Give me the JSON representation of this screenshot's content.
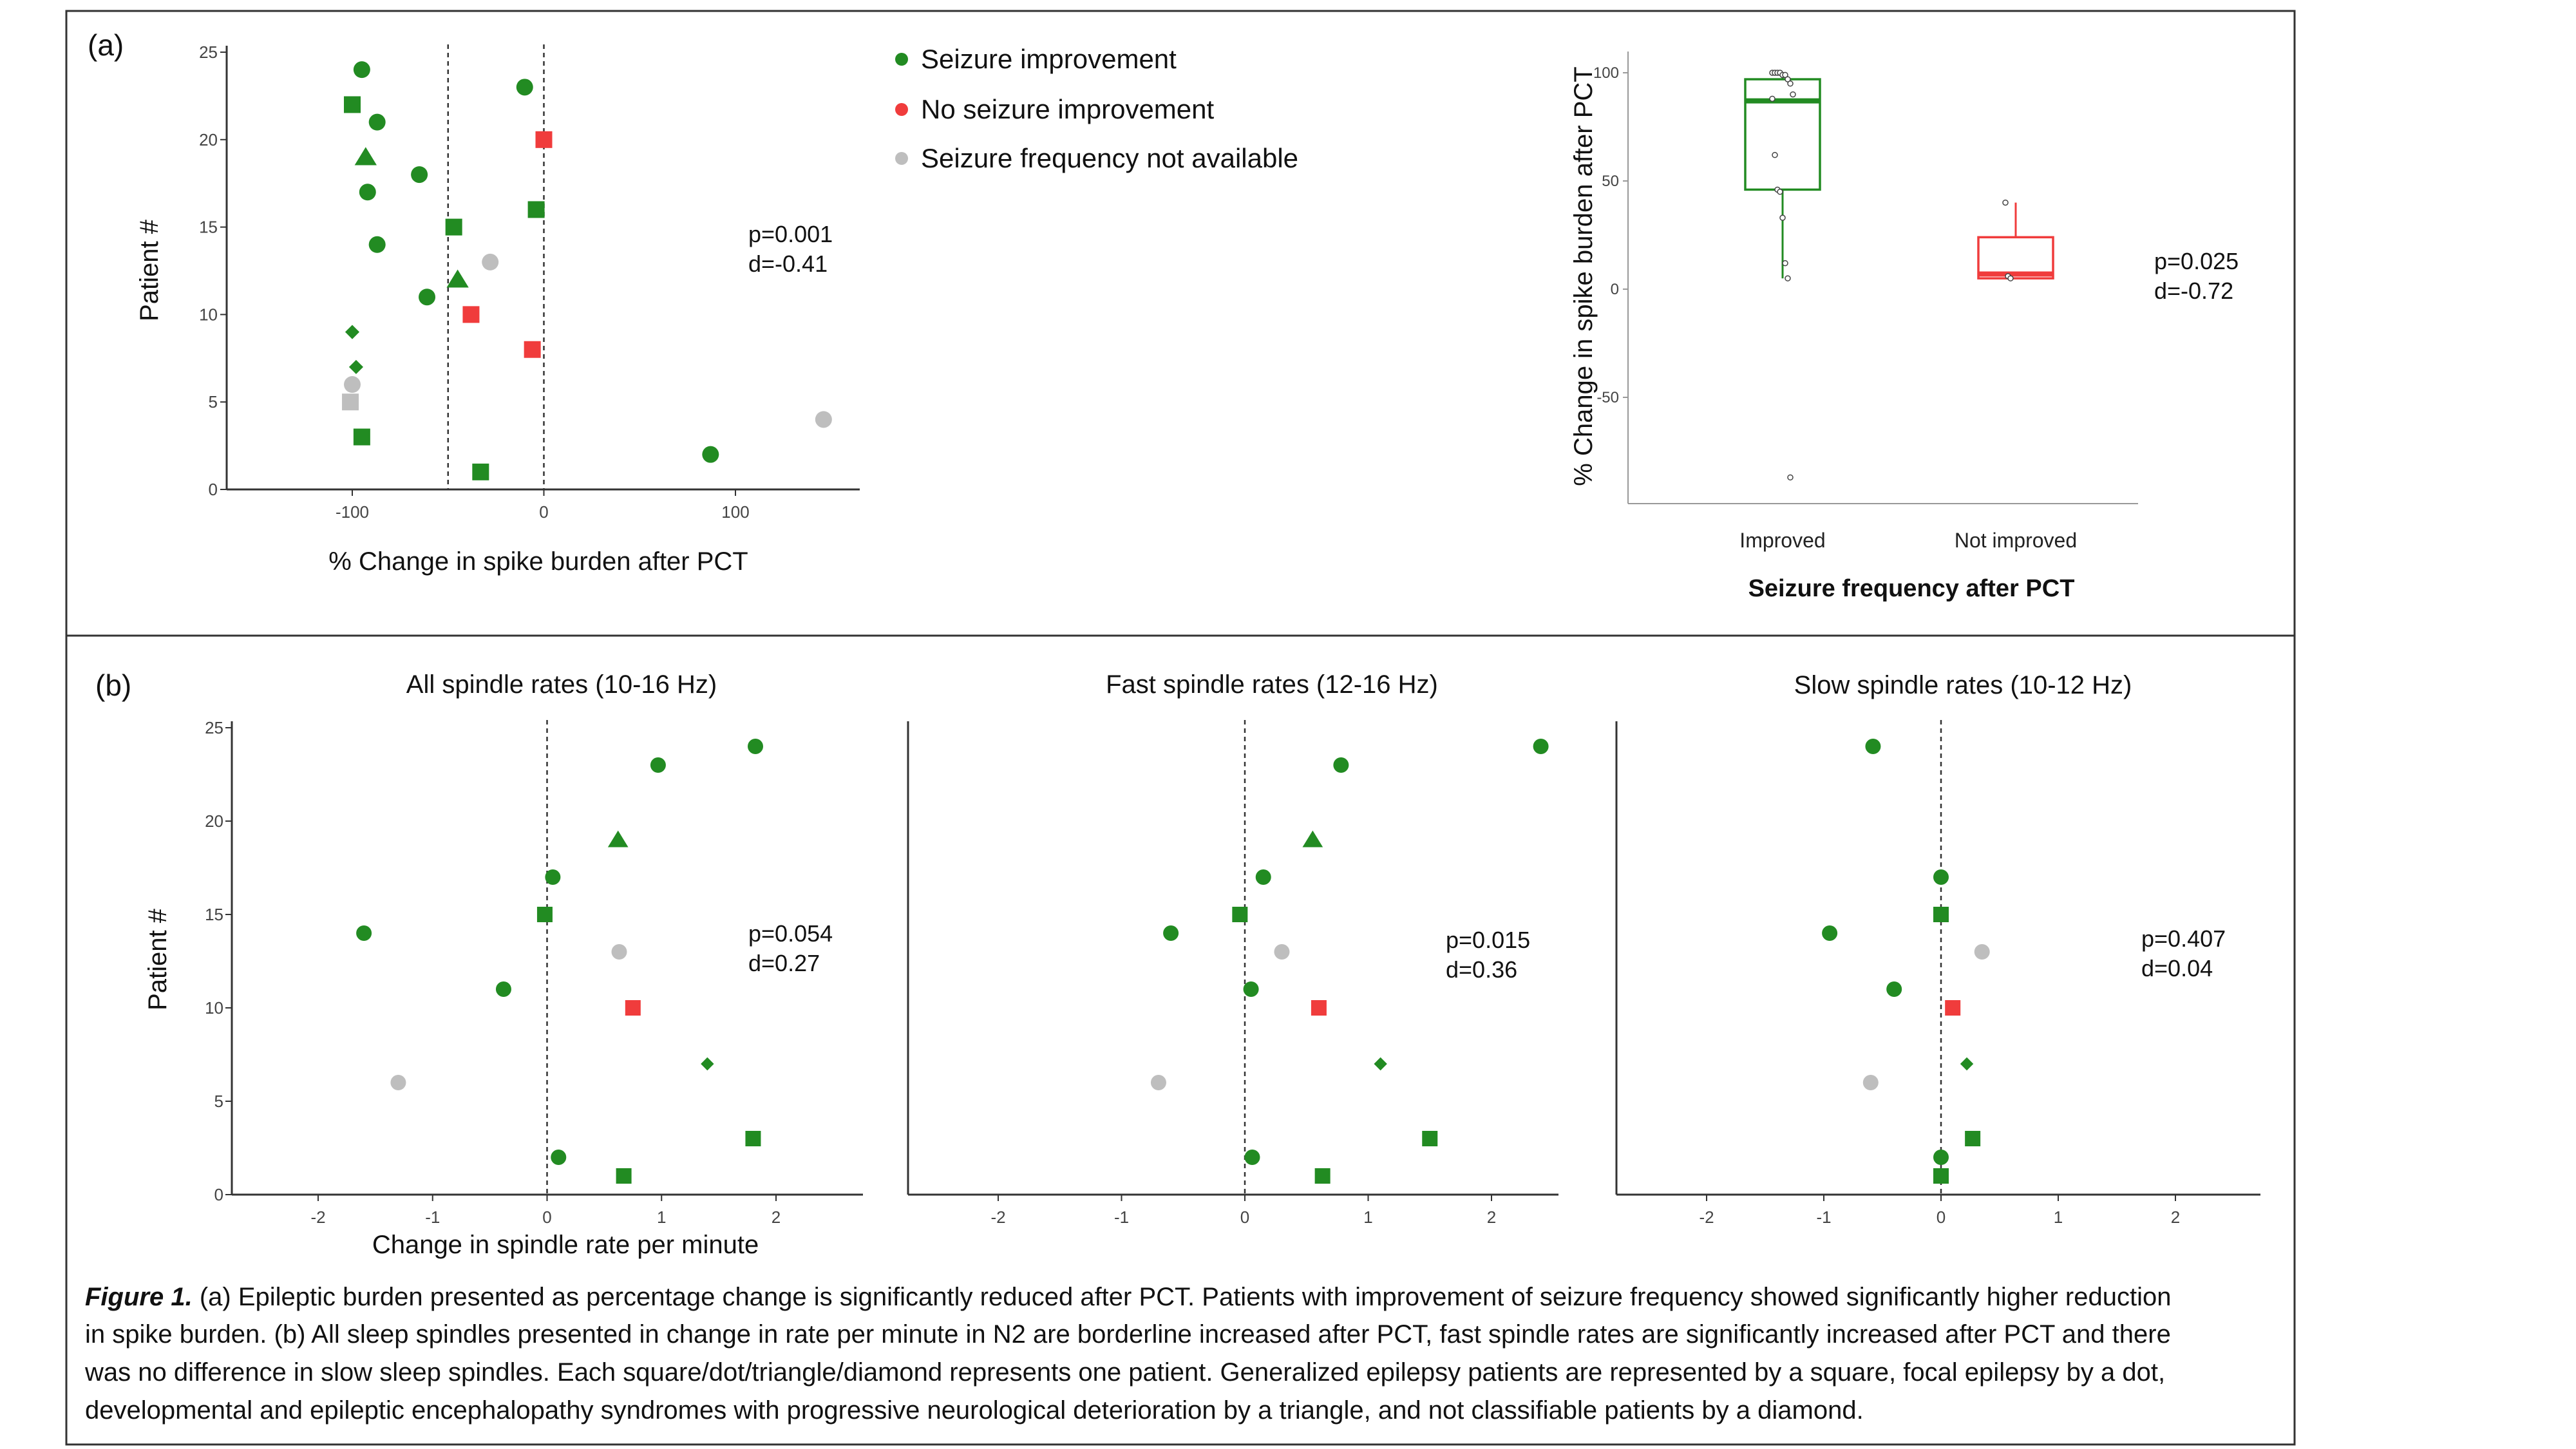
{
  "colors": {
    "improved": "#228B22",
    "not_improved": "#F03C3C",
    "na": "#BEBEBE",
    "axis": "#333333",
    "frame": "#333333"
  },
  "panel_a_label": "(a)",
  "panel_b_label": "(b)",
  "legend": [
    {
      "label": "Seizure improvement",
      "color_key": "improved"
    },
    {
      "label": "No seizure improvement",
      "color_key": "not_improved"
    },
    {
      "label": "Seizure frequency not available",
      "color_key": "na"
    }
  ],
  "chart_data": [
    {
      "id": "a_left",
      "type": "scatter",
      "title": "",
      "xlabel": "% Change in spike burden after PCT",
      "ylabel": "Patient #",
      "xlim": [
        -165,
        165
      ],
      "ylim": [
        0,
        25
      ],
      "xticks": [
        -100,
        0,
        100
      ],
      "xtick_labels": [
        "-100",
        "0",
        "100"
      ],
      "yticks": [
        0,
        5,
        10,
        15,
        20,
        25
      ],
      "ytick_labels": [
        "0",
        "5",
        "10",
        "15",
        "20",
        "25"
      ],
      "vlines": [
        -50,
        0
      ],
      "stats": {
        "p": "p=0.001",
        "d": "d=-0.41"
      },
      "points": [
        {
          "patient": 24,
          "x": -95,
          "shape": "circle",
          "group": "improved"
        },
        {
          "patient": 23,
          "x": -10,
          "shape": "circle",
          "group": "improved"
        },
        {
          "patient": 22,
          "x": -100,
          "shape": "square",
          "group": "improved"
        },
        {
          "patient": 21,
          "x": -87,
          "shape": "circle",
          "group": "improved"
        },
        {
          "patient": 20,
          "x": 0,
          "shape": "square",
          "group": "not_improved"
        },
        {
          "patient": 19,
          "x": -93,
          "shape": "triangle",
          "group": "improved"
        },
        {
          "patient": 18,
          "x": -65,
          "shape": "circle",
          "group": "improved"
        },
        {
          "patient": 17,
          "x": -92,
          "shape": "circle",
          "group": "improved"
        },
        {
          "patient": 16,
          "x": -4,
          "shape": "square",
          "group": "improved"
        },
        {
          "patient": 15,
          "x": -47,
          "shape": "square",
          "group": "improved"
        },
        {
          "patient": 14,
          "x": -87,
          "shape": "circle",
          "group": "improved"
        },
        {
          "patient": 13,
          "x": -28,
          "shape": "circle",
          "group": "na"
        },
        {
          "patient": 12,
          "x": -45,
          "shape": "triangle",
          "group": "improved"
        },
        {
          "patient": 11,
          "x": -61,
          "shape": "circle",
          "group": "improved"
        },
        {
          "patient": 10,
          "x": -38,
          "shape": "square",
          "group": "not_improved"
        },
        {
          "patient": 9,
          "x": -100,
          "shape": "diamond",
          "group": "improved"
        },
        {
          "patient": 8,
          "x": -6,
          "shape": "square",
          "group": "not_improved"
        },
        {
          "patient": 7,
          "x": -98,
          "shape": "diamond",
          "group": "improved"
        },
        {
          "patient": 6,
          "x": -100,
          "shape": "circle",
          "group": "na"
        },
        {
          "patient": 5,
          "x": -101,
          "shape": "square",
          "group": "na"
        },
        {
          "patient": 4,
          "x": 146,
          "shape": "circle",
          "group": "na"
        },
        {
          "patient": 3,
          "x": -95,
          "shape": "square",
          "group": "improved"
        },
        {
          "patient": 2,
          "x": 87,
          "shape": "circle",
          "group": "improved"
        },
        {
          "patient": 1,
          "x": -33,
          "shape": "square",
          "group": "improved"
        }
      ]
    },
    {
      "id": "a_right",
      "type": "box",
      "xlabel": "Seizure frequency after PCT",
      "ylabel": "% Change in spike burden after PCT",
      "ylim": [
        -100,
        105
      ],
      "yticks": [
        100,
        50,
        0,
        -50
      ],
      "ytick_labels": [
        "100",
        "50",
        "0",
        "-50"
      ],
      "stats": {
        "p": "p=0.025",
        "d": "d=-0.72"
      },
      "groups": [
        {
          "label": "Improved",
          "color_key": "improved",
          "q1": 46,
          "median": 87,
          "q3": 97,
          "whisker_low": 5,
          "whisker_high": 100,
          "points": [
            100,
            100,
            100,
            100,
            99,
            99,
            97,
            95,
            90,
            88,
            62,
            46,
            45,
            33,
            12,
            5,
            -87
          ]
        },
        {
          "label": "Not improved",
          "color_key": "not_improved",
          "q1": 5,
          "median": 7,
          "q3": 24,
          "whisker_low": 5,
          "whisker_high": 40,
          "points": [
            40,
            6,
            5
          ]
        }
      ]
    },
    {
      "id": "b_all",
      "type": "scatter",
      "title": "All spindle rates (10-16 Hz)",
      "xlabel": "Change in spindle rate per minute",
      "ylabel": "Patient #",
      "xlim": [
        -2.8,
        2.8
      ],
      "ylim": [
        0,
        25
      ],
      "xticks": [
        -2,
        -1,
        0,
        1,
        2
      ],
      "xtick_labels": [
        "-2",
        "-1",
        "0",
        "1",
        "2"
      ],
      "yticks": [
        0,
        5,
        10,
        15,
        20,
        25
      ],
      "ytick_labels": [
        "0",
        "5",
        "10",
        "15",
        "20",
        "25"
      ],
      "vlines": [
        0
      ],
      "stats": {
        "p": "p=0.054",
        "d": "d=0.27"
      },
      "points": [
        {
          "patient": 24,
          "x": 1.82,
          "shape": "circle",
          "group": "improved"
        },
        {
          "patient": 23,
          "x": 0.97,
          "shape": "circle",
          "group": "improved"
        },
        {
          "patient": 19,
          "x": 0.62,
          "shape": "triangle",
          "group": "improved"
        },
        {
          "patient": 17,
          "x": 0.05,
          "shape": "circle",
          "group": "improved"
        },
        {
          "patient": 15,
          "x": -0.02,
          "shape": "square",
          "group": "improved"
        },
        {
          "patient": 14,
          "x": -1.6,
          "shape": "circle",
          "group": "improved"
        },
        {
          "patient": 13,
          "x": 0.63,
          "shape": "circle",
          "group": "na"
        },
        {
          "patient": 11,
          "x": -0.38,
          "shape": "circle",
          "group": "improved"
        },
        {
          "patient": 10,
          "x": 0.75,
          "shape": "square",
          "group": "not_improved"
        },
        {
          "patient": 7,
          "x": 1.4,
          "shape": "diamond",
          "group": "improved"
        },
        {
          "patient": 6,
          "x": -1.3,
          "shape": "circle",
          "group": "na"
        },
        {
          "patient": 3,
          "x": 1.8,
          "shape": "square",
          "group": "improved"
        },
        {
          "patient": 2,
          "x": 0.1,
          "shape": "circle",
          "group": "improved"
        },
        {
          "patient": 1,
          "x": 0.67,
          "shape": "square",
          "group": "improved"
        }
      ]
    },
    {
      "id": "b_fast",
      "type": "scatter",
      "title": "Fast spindle rates (12-16 Hz)",
      "xlabel": "",
      "ylabel": "",
      "xlim": [
        -2.75,
        2.75
      ],
      "ylim": [
        0,
        25
      ],
      "xticks": [
        -2,
        -1,
        0,
        1,
        2
      ],
      "xtick_labels": [
        "-2",
        "-1",
        "0",
        "1",
        "2"
      ],
      "yticks": [],
      "ytick_labels": [],
      "vlines": [
        0
      ],
      "stats": {
        "p": "p=0.015",
        "d": "d=0.36"
      },
      "points": [
        {
          "patient": 24,
          "x": 2.4,
          "shape": "circle",
          "group": "improved"
        },
        {
          "patient": 23,
          "x": 0.78,
          "shape": "circle",
          "group": "improved"
        },
        {
          "patient": 19,
          "x": 0.55,
          "shape": "triangle",
          "group": "improved"
        },
        {
          "patient": 17,
          "x": 0.15,
          "shape": "circle",
          "group": "improved"
        },
        {
          "patient": 15,
          "x": -0.04,
          "shape": "square",
          "group": "improved"
        },
        {
          "patient": 14,
          "x": -0.6,
          "shape": "circle",
          "group": "improved"
        },
        {
          "patient": 13,
          "x": 0.3,
          "shape": "circle",
          "group": "na"
        },
        {
          "patient": 11,
          "x": 0.05,
          "shape": "circle",
          "group": "improved"
        },
        {
          "patient": 10,
          "x": 0.6,
          "shape": "square",
          "group": "not_improved"
        },
        {
          "patient": 7,
          "x": 1.1,
          "shape": "diamond",
          "group": "improved"
        },
        {
          "patient": 6,
          "x": -0.7,
          "shape": "circle",
          "group": "na"
        },
        {
          "patient": 3,
          "x": 1.5,
          "shape": "square",
          "group": "improved"
        },
        {
          "patient": 2,
          "x": 0.06,
          "shape": "circle",
          "group": "improved"
        },
        {
          "patient": 1,
          "x": 0.63,
          "shape": "square",
          "group": "improved"
        }
      ]
    },
    {
      "id": "b_slow",
      "type": "scatter",
      "title": "Slow spindle rates (10-12 Hz)",
      "xlabel": "",
      "ylabel": "",
      "xlim": [
        -2.75,
        2.75
      ],
      "ylim": [
        0,
        25
      ],
      "xticks": [
        -2,
        -1,
        0,
        1,
        2
      ],
      "xtick_labels": [
        "-2",
        "-1",
        "0",
        "1",
        "2"
      ],
      "yticks": [],
      "ytick_labels": [],
      "vlines": [
        0
      ],
      "stats": {
        "p": "p=0.407",
        "d": "d=0.04"
      },
      "points": [
        {
          "patient": 24,
          "x": -0.58,
          "shape": "circle",
          "group": "improved"
        },
        {
          "patient": 17,
          "x": 0.0,
          "shape": "circle",
          "group": "improved"
        },
        {
          "patient": 15,
          "x": 0.0,
          "shape": "square",
          "group": "improved"
        },
        {
          "patient": 14,
          "x": -0.95,
          "shape": "circle",
          "group": "improved"
        },
        {
          "patient": 13,
          "x": 0.35,
          "shape": "circle",
          "group": "na"
        },
        {
          "patient": 11,
          "x": -0.4,
          "shape": "circle",
          "group": "improved"
        },
        {
          "patient": 10,
          "x": 0.1,
          "shape": "square",
          "group": "not_improved"
        },
        {
          "patient": 7,
          "x": 0.22,
          "shape": "diamond",
          "group": "improved"
        },
        {
          "patient": 6,
          "x": -0.6,
          "shape": "circle",
          "group": "na"
        },
        {
          "patient": 3,
          "x": 0.27,
          "shape": "square",
          "group": "improved"
        },
        {
          "patient": 2,
          "x": 0.0,
          "shape": "circle",
          "group": "improved"
        },
        {
          "patient": 1,
          "x": 0.0,
          "shape": "square",
          "group": "improved"
        }
      ]
    }
  ],
  "caption": {
    "label": "Figure 1.",
    "lines": [
      " (a) Epileptic burden presented as percentage change is significantly reduced after PCT. Patients with improvement of seizure frequency showed significantly higher reduction",
      "in spike burden. (b) All sleep spindles presented in change in rate per minute in N2 are borderline increased after PCT, fast spindle rates are significantly increased after PCT and there",
      "was no difference in slow sleep spindles. Each square/dot/triangle/diamond represents one patient. Generalized epilepsy patients are represented by a square, focal epilepsy by a dot,",
      "developmental and epileptic encephalopathy syndromes with progressive neurological deterioration by a triangle, and not classifiable patients by a diamond."
    ]
  }
}
